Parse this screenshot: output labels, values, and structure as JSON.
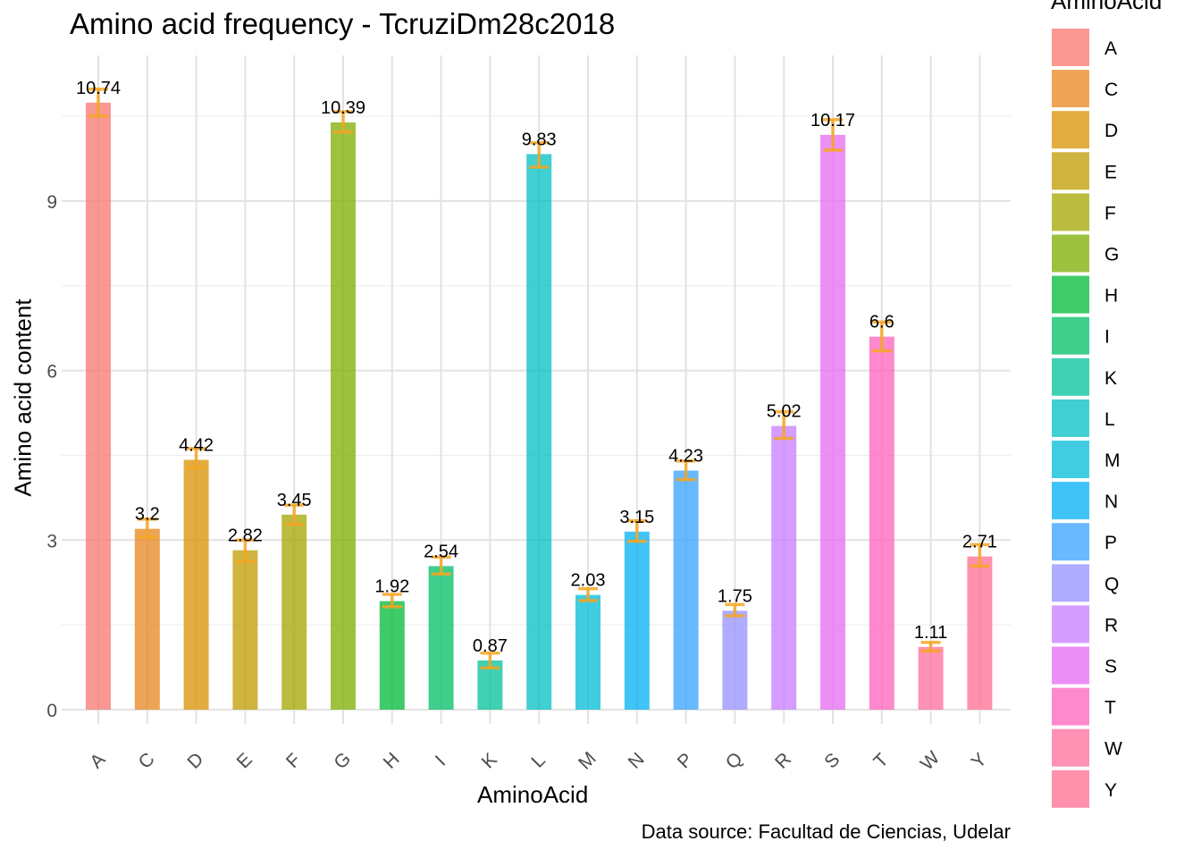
{
  "chart_data": {
    "type": "bar",
    "title": "Amino acid frequency - TcruziDm28c2018",
    "caption": "Data source: Facultad de Ciencias, Udelar",
    "xlabel": "AminoAcid",
    "ylabel": "Amino acid content",
    "legend_title": "AminoAcid",
    "legend_position": "right",
    "grid": true,
    "ylim": [
      0,
      11.0
    ],
    "yticks": [
      0,
      3,
      6,
      9
    ],
    "categories": [
      "A",
      "C",
      "D",
      "E",
      "F",
      "G",
      "H",
      "I",
      "K",
      "L",
      "M",
      "N",
      "P",
      "Q",
      "R",
      "S",
      "T",
      "W",
      "Y"
    ],
    "values": [
      10.74,
      3.2,
      4.42,
      2.82,
      3.45,
      10.39,
      1.92,
      2.54,
      0.87,
      9.83,
      2.03,
      3.15,
      4.23,
      1.75,
      5.02,
      10.17,
      6.6,
      1.11,
      2.71
    ],
    "value_labels": [
      "10.74",
      "3.2",
      "4.42",
      "2.82",
      "3.45",
      "10.39",
      "1.92",
      "2.54",
      "0.87",
      "9.83",
      "2.03",
      "3.15",
      "4.23",
      "1.75",
      "5.02",
      "10.17",
      "6.6",
      "1.11",
      "2.71"
    ],
    "error_low": [
      10.5,
      3.05,
      4.28,
      2.62,
      3.28,
      10.22,
      1.82,
      2.4,
      0.74,
      9.6,
      1.93,
      2.98,
      4.07,
      1.66,
      4.8,
      9.9,
      6.35,
      1.04,
      2.54
    ],
    "error_high": [
      10.98,
      3.37,
      4.62,
      3.0,
      3.62,
      10.58,
      2.04,
      2.7,
      1.0,
      10.03,
      2.14,
      3.34,
      4.4,
      1.86,
      5.27,
      10.44,
      6.86,
      1.19,
      2.92
    ],
    "error_color": "#F5A623",
    "colors": [
      "#F8766D",
      "#E7851E",
      "#D89000",
      "#C09B00",
      "#A3A500",
      "#7CAE00",
      "#00BA38",
      "#00BE67",
      "#00C19A",
      "#00BFC4",
      "#00BCD8",
      "#00B0F6",
      "#35A2FF",
      "#9590FF",
      "#C77CFF",
      "#E76BF3",
      "#FF62BC",
      "#FF6C9C",
      "#FF6C91"
    ]
  }
}
